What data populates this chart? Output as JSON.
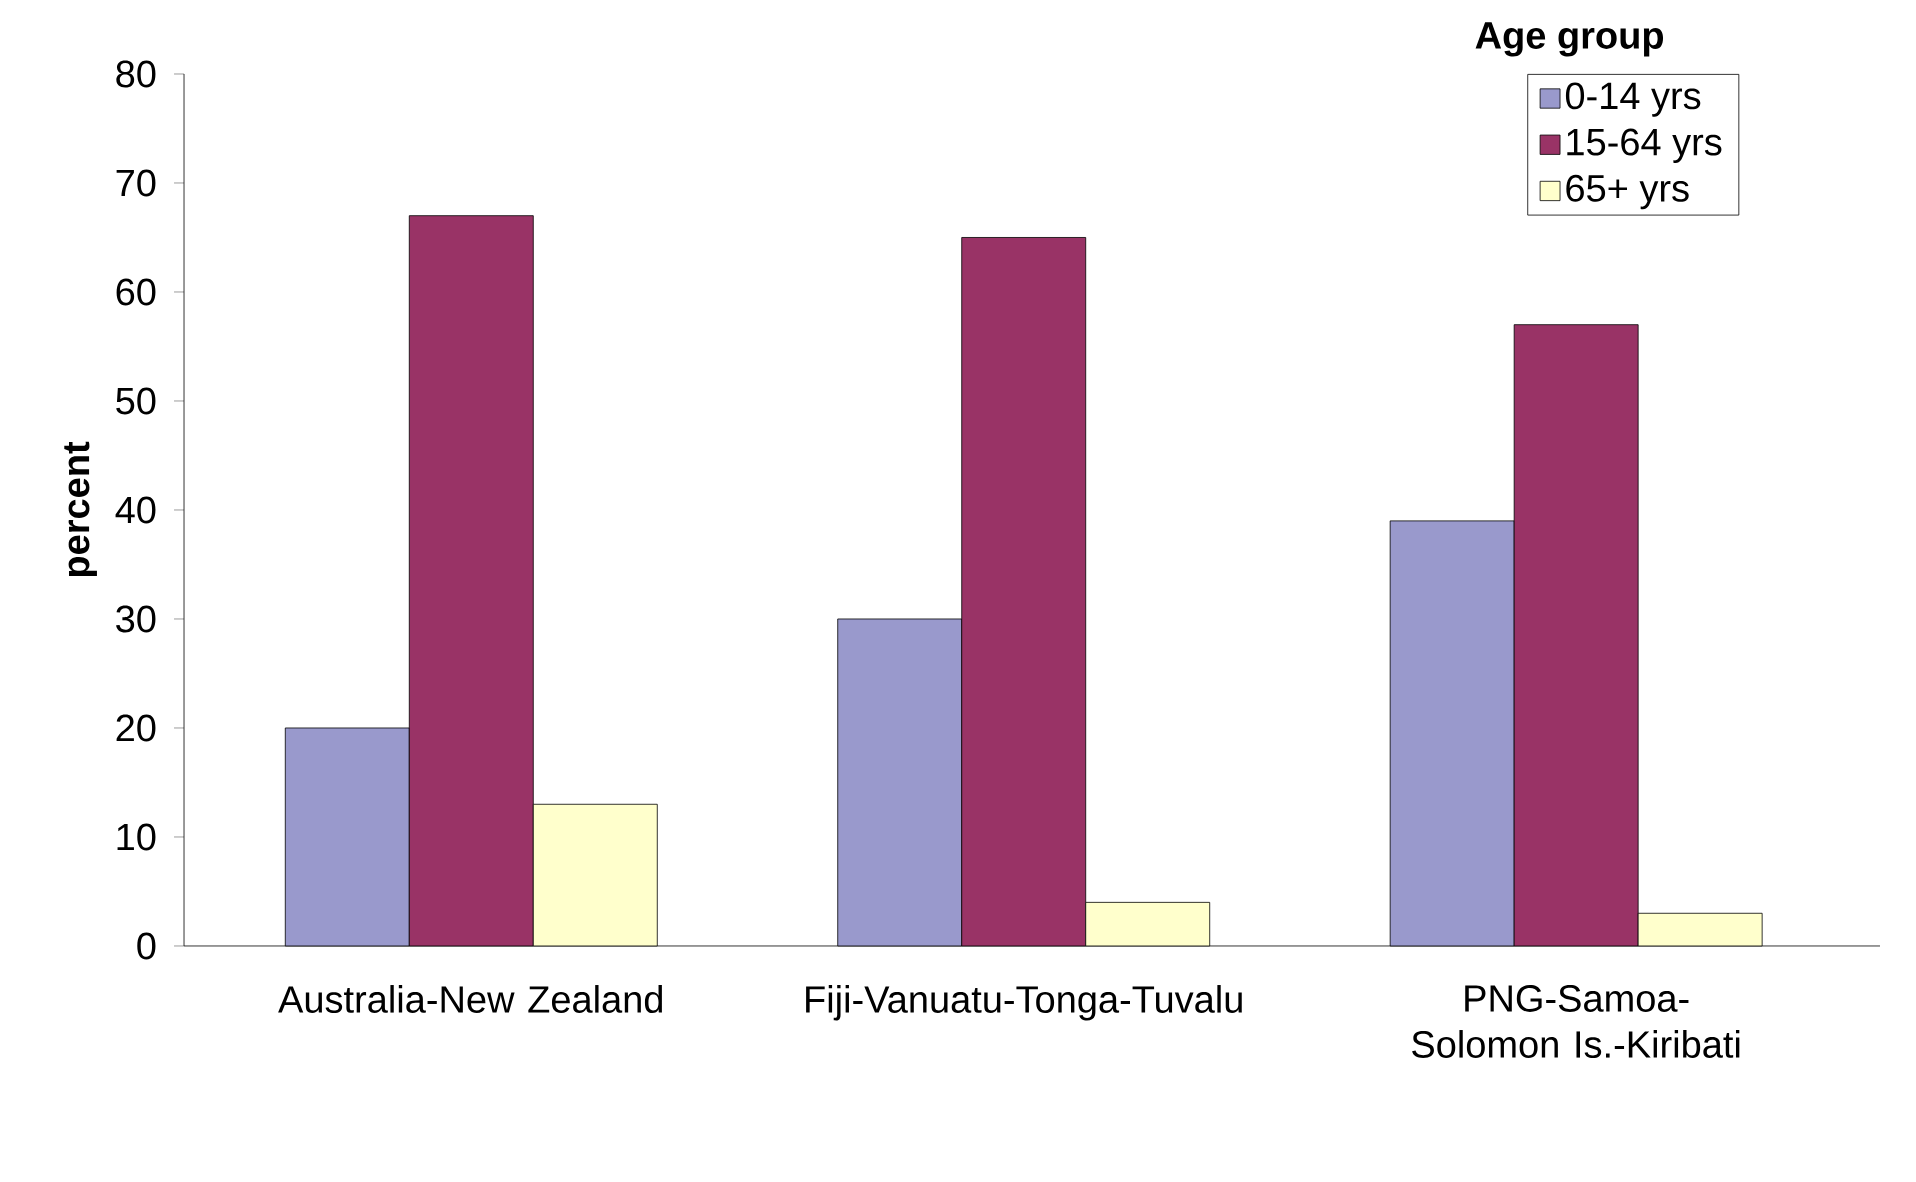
{
  "chart_data": {
    "type": "bar",
    "ylabel": "percent",
    "legend_title": "Age group",
    "legend": "top right",
    "categories": [
      "Australia-New Zealand",
      "Fiji-Vanuatu-Tonga-Tuvalu",
      "PNG-Samoa-Solomon Is.-Kiribati"
    ],
    "series": [
      {
        "name": "0-14 yrs",
        "color": "#9999cc",
        "values": [
          20,
          30,
          39
        ]
      },
      {
        "name": "15-64 yrs",
        "color": "#993366",
        "values": [
          67,
          65,
          57
        ]
      },
      {
        "name": "65+ yrs",
        "color": "#ffffcc",
        "values": [
          13,
          4,
          3
        ]
      }
    ],
    "ylim": [
      0,
      80
    ],
    "yticks": [
      0,
      10,
      20,
      30,
      40,
      50,
      60,
      70,
      80
    ]
  }
}
